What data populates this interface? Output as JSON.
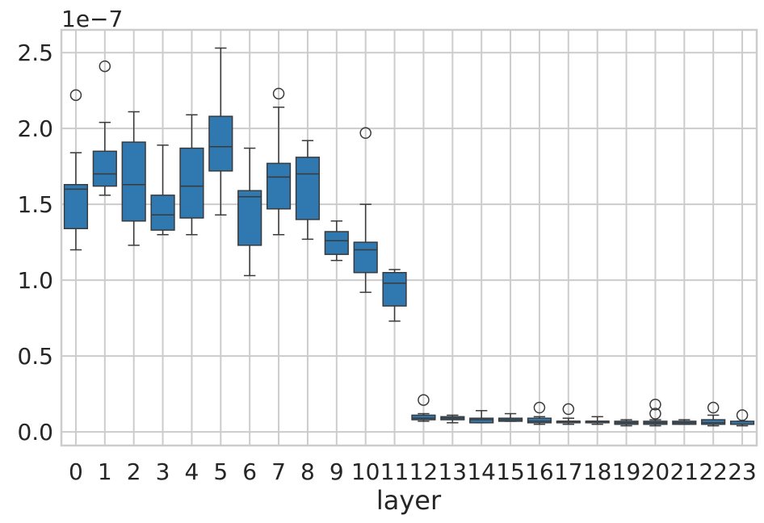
{
  "chart_data": {
    "type": "box",
    "xlabel": "layer",
    "ylabel": "",
    "offset_label": "1e−7",
    "y_tick_labels": [
      "0.0",
      "0.5",
      "1.0",
      "1.5",
      "2.0",
      "2.5"
    ],
    "y_ticks": [
      0.0,
      0.5,
      1.0,
      1.5,
      2.0,
      2.5
    ],
    "ylim": [
      -0.09,
      2.65
    ],
    "grid": true,
    "box_color": "#2f78b0",
    "edge_color": "#3a3a3a",
    "grid_color": "#cccccc",
    "boxes": [
      {
        "label": "0",
        "whislo": 1.2,
        "q1": 1.34,
        "med": 1.6,
        "q3": 1.63,
        "whishi": 1.84,
        "fliers": [
          2.22
        ]
      },
      {
        "label": "1",
        "whislo": 1.56,
        "q1": 1.62,
        "med": 1.7,
        "q3": 1.85,
        "whishi": 2.04,
        "fliers": [
          2.41
        ]
      },
      {
        "label": "2",
        "whislo": 1.23,
        "q1": 1.39,
        "med": 1.63,
        "q3": 1.91,
        "whishi": 2.11,
        "fliers": []
      },
      {
        "label": "3",
        "whislo": 1.3,
        "q1": 1.33,
        "med": 1.43,
        "q3": 1.56,
        "whishi": 1.89,
        "fliers": []
      },
      {
        "label": "4",
        "whislo": 1.3,
        "q1": 1.41,
        "med": 1.62,
        "q3": 1.87,
        "whishi": 2.09,
        "fliers": []
      },
      {
        "label": "5",
        "whislo": 1.43,
        "q1": 1.72,
        "med": 1.88,
        "q3": 2.08,
        "whishi": 2.53,
        "fliers": []
      },
      {
        "label": "6",
        "whislo": 1.03,
        "q1": 1.23,
        "med": 1.55,
        "q3": 1.59,
        "whishi": 1.87,
        "fliers": []
      },
      {
        "label": "7",
        "whislo": 1.3,
        "q1": 1.47,
        "med": 1.68,
        "q3": 1.77,
        "whishi": 2.14,
        "fliers": [
          2.23
        ]
      },
      {
        "label": "8",
        "whislo": 1.27,
        "q1": 1.4,
        "med": 1.7,
        "q3": 1.81,
        "whishi": 1.92,
        "fliers": []
      },
      {
        "label": "9",
        "whislo": 1.13,
        "q1": 1.17,
        "med": 1.26,
        "q3": 1.32,
        "whishi": 1.39,
        "fliers": []
      },
      {
        "label": "10",
        "whislo": 0.92,
        "q1": 1.05,
        "med": 1.2,
        "q3": 1.25,
        "whishi": 1.5,
        "fliers": [
          1.97
        ]
      },
      {
        "label": "11",
        "whislo": 0.73,
        "q1": 0.83,
        "med": 0.98,
        "q3": 1.05,
        "whishi": 1.07,
        "fliers": []
      },
      {
        "label": "12",
        "whislo": 0.07,
        "q1": 0.08,
        "med": 0.09,
        "q3": 0.11,
        "whishi": 0.12,
        "fliers": [
          0.21
        ]
      },
      {
        "label": "13",
        "whislo": 0.06,
        "q1": 0.08,
        "med": 0.09,
        "q3": 0.1,
        "whishi": 0.11,
        "fliers": []
      },
      {
        "label": "14",
        "whislo": 0.06,
        "q1": 0.06,
        "med": 0.08,
        "q3": 0.09,
        "whishi": 0.14,
        "fliers": []
      },
      {
        "label": "15",
        "whislo": 0.07,
        "q1": 0.07,
        "med": 0.08,
        "q3": 0.09,
        "whishi": 0.12,
        "fliers": []
      },
      {
        "label": "16",
        "whislo": 0.05,
        "q1": 0.06,
        "med": 0.07,
        "q3": 0.09,
        "whishi": 0.1,
        "fliers": [
          0.16
        ]
      },
      {
        "label": "17",
        "whislo": 0.05,
        "q1": 0.06,
        "med": 0.07,
        "q3": 0.07,
        "whishi": 0.09,
        "fliers": [
          0.15
        ]
      },
      {
        "label": "18",
        "whislo": 0.05,
        "q1": 0.06,
        "med": 0.07,
        "q3": 0.07,
        "whishi": 0.1,
        "fliers": []
      },
      {
        "label": "19",
        "whislo": 0.04,
        "q1": 0.05,
        "med": 0.06,
        "q3": 0.07,
        "whishi": 0.08,
        "fliers": []
      },
      {
        "label": "20",
        "whislo": 0.04,
        "q1": 0.05,
        "med": 0.06,
        "q3": 0.07,
        "whishi": 0.08,
        "fliers": [
          0.12,
          0.18
        ]
      },
      {
        "label": "21",
        "whislo": 0.05,
        "q1": 0.05,
        "med": 0.06,
        "q3": 0.07,
        "whishi": 0.08,
        "fliers": []
      },
      {
        "label": "22",
        "whislo": 0.04,
        "q1": 0.05,
        "med": 0.06,
        "q3": 0.08,
        "whishi": 0.11,
        "fliers": [
          0.16
        ]
      },
      {
        "label": "23",
        "whislo": 0.04,
        "q1": 0.05,
        "med": 0.05,
        "q3": 0.07,
        "whishi": 0.07,
        "fliers": [
          0.11
        ]
      }
    ]
  }
}
